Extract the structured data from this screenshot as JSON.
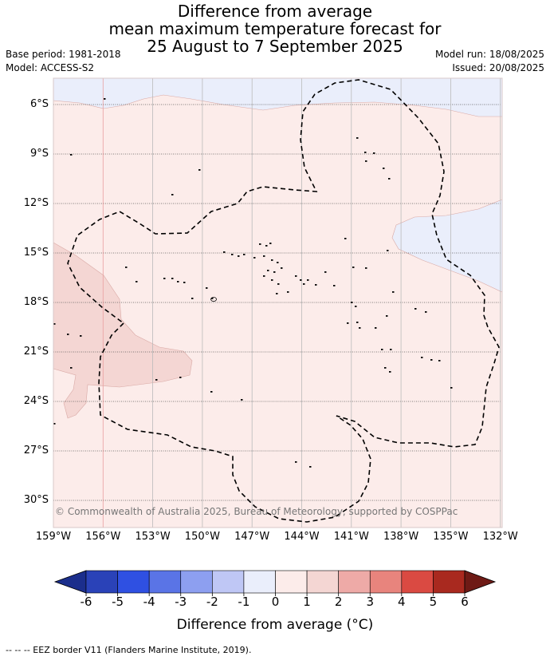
{
  "title": {
    "line1": "Difference from average",
    "line2": "mean maximum temperature forecast for",
    "line3": "25 August to 7 September 2025"
  },
  "meta": {
    "base_period": "Base period: 1981-2018",
    "model": "Model: ACCESS-S2",
    "model_run": "Model run: 18/08/2025",
    "issued": "Issued: 20/08/2025"
  },
  "map": {
    "lat_labels": [
      "6°S",
      "9°S",
      "12°S",
      "15°S",
      "18°S",
      "21°S",
      "24°S",
      "27°S",
      "30°S"
    ],
    "lon_labels": [
      "159°W",
      "156°W",
      "153°W",
      "150°W",
      "147°W",
      "144°W",
      "141°W",
      "138°W",
      "135°W",
      "132°W"
    ],
    "copyright": "© Commonwealth of Australia 2025, Bureau of Meteorology, supported by COSPPac",
    "colors": {
      "near_zero_warm": "#fcecea",
      "warm_1_2": "#f4d6d3",
      "cool_0_1": "#eaeefb"
    }
  },
  "colorbar": {
    "ticks": [
      "-6",
      "-5",
      "-4",
      "-3",
      "-2",
      "-1",
      "0",
      "1",
      "2",
      "3",
      "4",
      "5",
      "6"
    ],
    "colors": [
      "#1b2e8c",
      "#2a42b8",
      "#2f50e2",
      "#5a74e6",
      "#8d9ff0",
      "#bfc7f5",
      "#eaeefb",
      "#fcecea",
      "#f4d6d3",
      "#eeaaa7",
      "#e8847d",
      "#da4a42",
      "#a9291f",
      "#6e1a15"
    ],
    "title": "Difference from average (°C)"
  },
  "footnote": "--  --  -- EEZ border V11 (Flanders Marine Institute, 2019)."
}
